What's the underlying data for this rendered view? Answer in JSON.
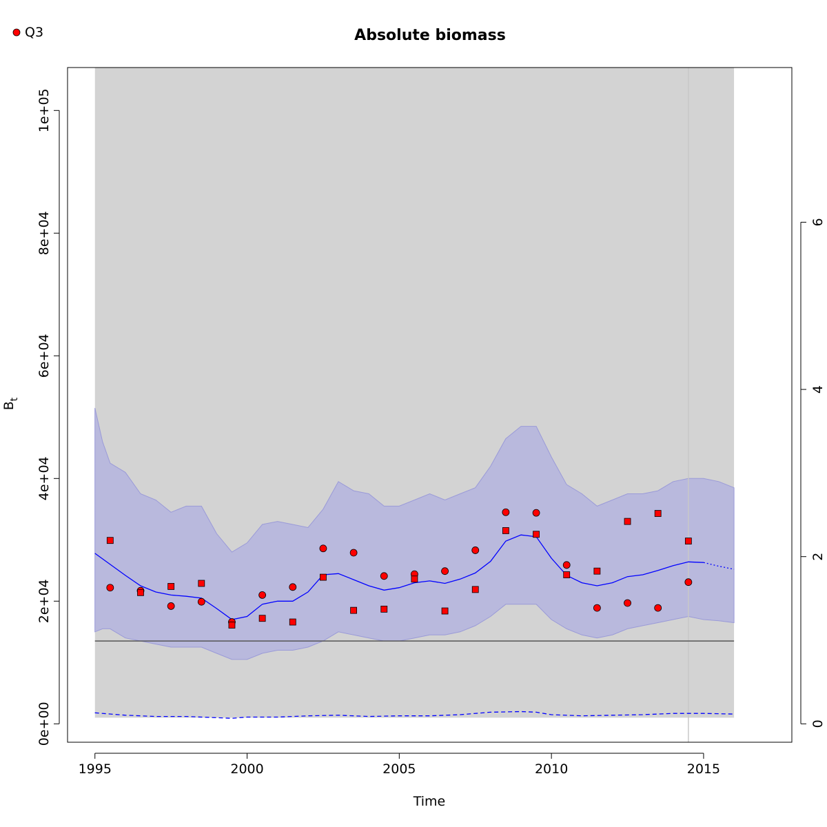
{
  "chart_data": {
    "type": "line",
    "title": "Absolute biomass",
    "xlabel": "Time",
    "ylabel": "B",
    "ylabel_subscript": "t",
    "xlim": [
      1994.1,
      2017.9
    ],
    "ylim": [
      -3000,
      107000
    ],
    "y2lim": [
      -0.22,
      7.85
    ],
    "x_ticks": [
      1995,
      2000,
      2005,
      2010,
      2015
    ],
    "x_tick_labels": [
      "1995",
      "2000",
      "2005",
      "2010",
      "2015"
    ],
    "y_ticks": [
      0,
      20000,
      40000,
      60000,
      80000,
      100000
    ],
    "y_tick_labels": [
      "0e+00",
      "2e+04",
      "4e+04",
      "6e+04",
      "8e+04",
      "1e+05"
    ],
    "y2_ticks": [
      0,
      2,
      4,
      6
    ],
    "y2_tick_labels": [
      "0",
      "2",
      "4",
      "6"
    ],
    "grid": false,
    "legend": {
      "position": "top-left",
      "entries": [
        {
          "label": "Q3",
          "marker": "circle",
          "color": "#ff0000"
        }
      ]
    },
    "colors": {
      "background_band": "#d3d3d3",
      "ci_fill": "#b0b0e0",
      "ci_edge": "#9a9ad8",
      "median_line": "#0000ff",
      "reference_line": "#555555",
      "point_fill": "#ff0000",
      "last_year_marker": "#c8c8c8"
    },
    "background_band_x": [
      1995,
      2016
    ],
    "last_year_marker_x": 2014.5,
    "reference_line_y": 13500,
    "ci_years": [
      1995.0,
      1995.25,
      1995.5,
      1996.0,
      1996.5,
      1997.0,
      1997.5,
      1998.0,
      1998.5,
      1999.0,
      1999.5,
      2000.0,
      2000.5,
      2001.0,
      2001.5,
      2002.0,
      2002.5,
      2003.0,
      2003.5,
      2004.0,
      2004.5,
      2005.0,
      2005.5,
      2006.0,
      2006.5,
      2007.0,
      2007.5,
      2008.0,
      2008.5,
      2009.0,
      2009.5,
      2010.0,
      2010.5,
      2011.0,
      2011.5,
      2012.0,
      2012.5,
      2013.0,
      2013.5,
      2014.0,
      2014.5,
      2015.0,
      2015.5,
      2016.0
    ],
    "ci_upper": [
      51500,
      46000,
      42500,
      41000,
      37500,
      36500,
      34500,
      35500,
      35500,
      31000,
      28000,
      29500,
      32500,
      33000,
      32500,
      32000,
      35000,
      39500,
      38000,
      37500,
      35500,
      35500,
      36500,
      37500,
      36500,
      37500,
      38500,
      42000,
      46500,
      48500,
      48500,
      43500,
      39000,
      37500,
      35500,
      36500,
      37500,
      37500,
      38000,
      39500,
      40000,
      40000,
      39500,
      38500
    ],
    "ci_lower": [
      15000,
      15500,
      15500,
      14000,
      13500,
      13000,
      12500,
      12500,
      12500,
      11500,
      10500,
      10500,
      11500,
      12000,
      12000,
      12500,
      13500,
      15000,
      14500,
      14000,
      13500,
      13500,
      14000,
      14500,
      14500,
      15000,
      16000,
      17500,
      19500,
      19500,
      19500,
      17000,
      15500,
      14500,
      14000,
      14500,
      15500,
      16000,
      16500,
      17000,
      17500,
      17000,
      16800,
      16500
    ],
    "series": [
      {
        "name": "",
        "style": "solid",
        "x": [
          1995.0,
          1995.5,
          1996.0,
          1996.5,
          1997.0,
          1997.5,
          1998.0,
          1998.5,
          1999.0,
          1999.5,
          2000.0,
          2000.5,
          2001.0,
          2001.5,
          2002.0,
          2002.5,
          2003.0,
          2003.5,
          2004.0,
          2004.5,
          2005.0,
          2005.5,
          2006.0,
          2006.5,
          2007.0,
          2007.5,
          2008.0,
          2008.5,
          2009.0,
          2009.5,
          2010.0,
          2010.5,
          2011.0,
          2011.5,
          2012.0,
          2012.5,
          2013.0,
          2013.5,
          2014.0,
          2014.5,
          2015.0
        ],
        "y": [
          27800,
          26000,
          24200,
          22500,
          21500,
          21000,
          20800,
          20500,
          18800,
          17000,
          17500,
          19500,
          20000,
          20000,
          21500,
          24300,
          24500,
          23500,
          22500,
          21800,
          22200,
          23000,
          23300,
          22900,
          23600,
          24600,
          26500,
          29800,
          30800,
          30500,
          27000,
          24200,
          23000,
          22500,
          23000,
          24000,
          24300,
          25000,
          25800,
          26400,
          26300
        ]
      },
      {
        "name": "",
        "style": "dotted",
        "x": [
          2015.0,
          2015.5,
          2016.0
        ],
        "y": [
          26300,
          25700,
          25200
        ]
      },
      {
        "name": "",
        "style": "dashed",
        "x": [
          1995.0,
          1996.0,
          1997.0,
          1998.0,
          1999.0,
          1999.5,
          2000.0,
          2001.0,
          2002.0,
          2003.0,
          2004.0,
          2005.0,
          2006.0,
          2007.0,
          2008.0,
          2009.0,
          2009.5,
          2010.0,
          2011.0,
          2012.0,
          2013.0,
          2014.0,
          2015.0,
          2016.0
        ],
        "y": [
          1800,
          1400,
          1200,
          1200,
          1000,
          900,
          1100,
          1100,
          1300,
          1400,
          1200,
          1300,
          1300,
          1500,
          1900,
          2000,
          1900,
          1500,
          1300,
          1400,
          1500,
          1700,
          1700,
          1600
        ]
      }
    ],
    "points": [
      {
        "name": "Q3",
        "marker": "circle",
        "x": [
          1995.5,
          1996.5,
          1997.5,
          1998.5,
          1999.5,
          2000.5,
          2001.5,
          2002.5,
          2003.5,
          2004.5,
          2005.5,
          2006.5,
          2007.5,
          2008.5,
          2009.5,
          2010.5,
          2011.5,
          2012.5,
          2013.5,
          2014.5
        ],
        "y": [
          22200,
          21700,
          19200,
          19900,
          16600,
          21000,
          22300,
          28600,
          27900,
          24100,
          24400,
          24900,
          28300,
          34500,
          34400,
          25900,
          18900,
          19700,
          18900,
          23100
        ]
      },
      {
        "name": "",
        "marker": "square",
        "x": [
          1995.5,
          1996.5,
          1997.5,
          1998.5,
          1999.5,
          2000.5,
          2001.5,
          2002.5,
          2003.5,
          2004.5,
          2005.5,
          2006.5,
          2007.5,
          2008.5,
          2009.5,
          2010.5,
          2011.5,
          2012.5,
          2013.5,
          2014.5
        ],
        "y": [
          29900,
          21400,
          22400,
          22900,
          16100,
          17200,
          16600,
          23900,
          18500,
          18700,
          23600,
          18400,
          21900,
          31500,
          30900,
          24300,
          24900,
          33000,
          34300,
          29800
        ]
      }
    ]
  }
}
